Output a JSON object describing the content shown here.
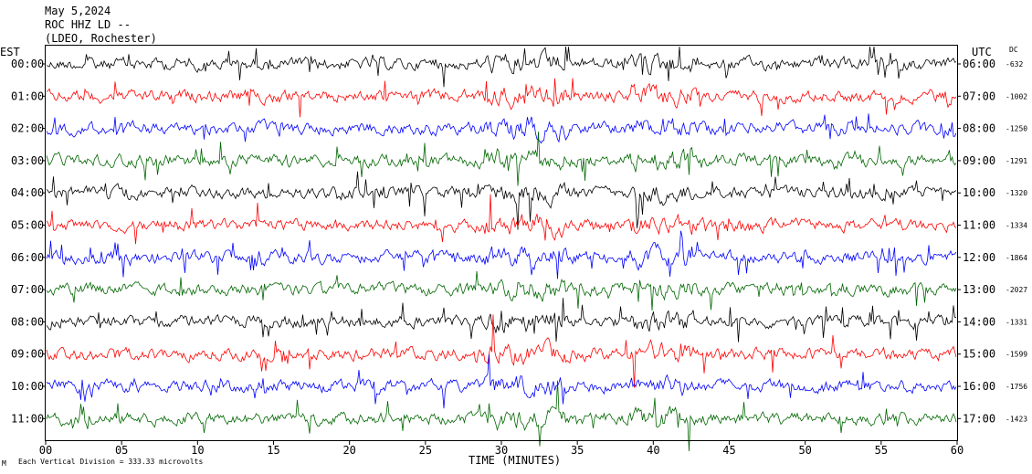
{
  "header": {
    "date": "May 5,2024",
    "station": "ROC HHZ LD --",
    "location": "(LDEO, Rochester)"
  },
  "axes": {
    "left_zone": "EST",
    "right_zone": "UTC",
    "offset_header": "DC",
    "xlabel": "TIME (MINUTES)",
    "scale_note": "Each Vertical Division =  333.33 microvolts",
    "corner_mark": "M"
  },
  "chart_data": {
    "type": "line",
    "title": "",
    "xlabel": "TIME (MINUTES)",
    "ylabel": "",
    "xlim": [
      0,
      60
    ],
    "x_ticks": [
      "00",
      "05",
      "10",
      "15",
      "20",
      "25",
      "30",
      "35",
      "40",
      "45",
      "50",
      "55",
      "60"
    ],
    "grid": false,
    "trace_colors": [
      "#000000",
      "#ff0000",
      "#0000ff",
      "#006600"
    ],
    "rows": [
      {
        "est": "00:00",
        "utc": "06:00",
        "dc": "-632"
      },
      {
        "est": "01:00",
        "utc": "07:00",
        "dc": "-1002"
      },
      {
        "est": "02:00",
        "utc": "08:00",
        "dc": "-1250"
      },
      {
        "est": "03:00",
        "utc": "09:00",
        "dc": "-1291"
      },
      {
        "est": "04:00",
        "utc": "10:00",
        "dc": "-1320"
      },
      {
        "est": "05:00",
        "utc": "11:00",
        "dc": "-1334"
      },
      {
        "est": "06:00",
        "utc": "12:00",
        "dc": "-1864"
      },
      {
        "est": "07:00",
        "utc": "13:00",
        "dc": "-2027"
      },
      {
        "est": "08:00",
        "utc": "14:00",
        "dc": "-1331"
      },
      {
        "est": "09:00",
        "utc": "15:00",
        "dc": "-1599"
      },
      {
        "est": "10:00",
        "utc": "16:00",
        "dc": "-1756"
      },
      {
        "est": "11:00",
        "utc": "17:00",
        "dc": "-1423"
      }
    ]
  }
}
